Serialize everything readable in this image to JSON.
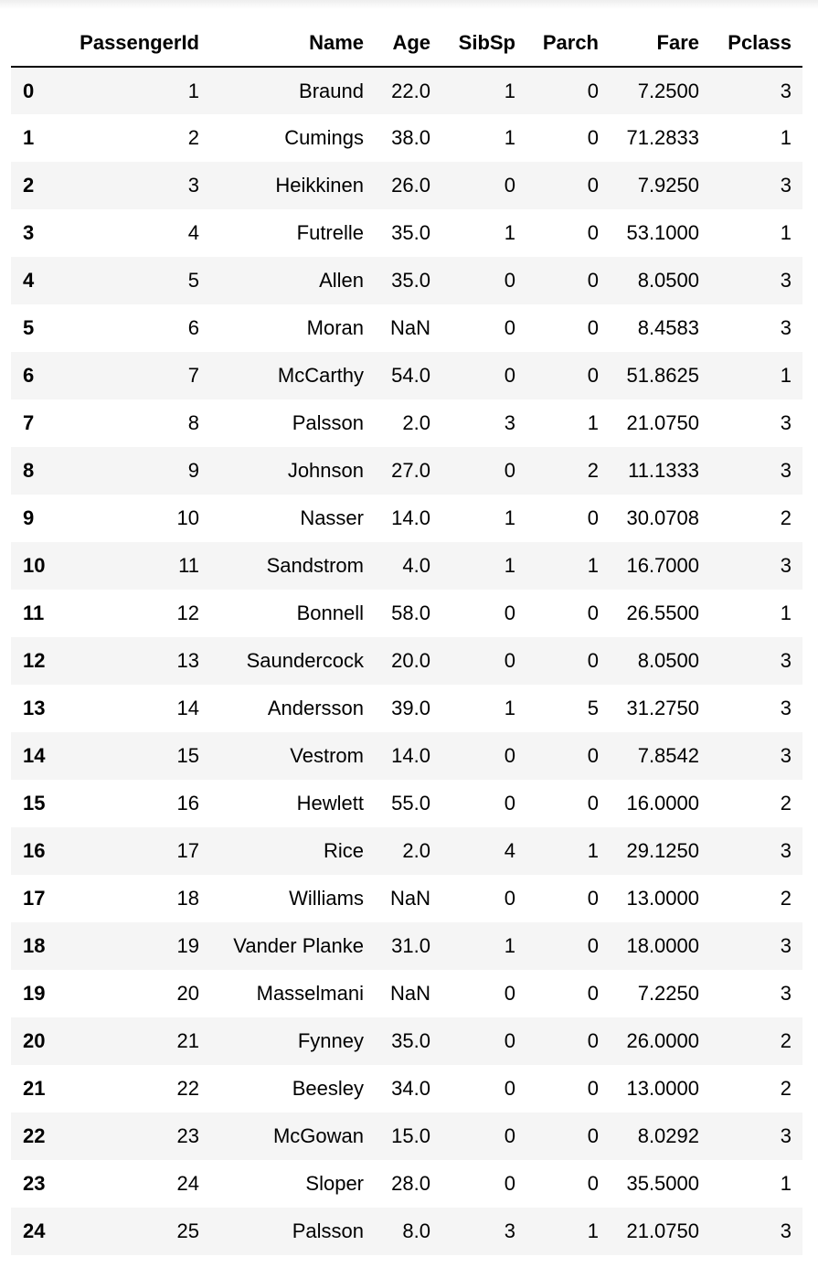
{
  "dataframe": {
    "columns": [
      "PassengerId",
      "Name",
      "Age",
      "SibSp",
      "Parch",
      "Fare",
      "Pclass"
    ],
    "index": [
      "0",
      "1",
      "2",
      "3",
      "4",
      "5",
      "6",
      "7",
      "8",
      "9",
      "10",
      "11",
      "12",
      "13",
      "14",
      "15",
      "16",
      "17",
      "18",
      "19",
      "20",
      "21",
      "22",
      "23",
      "24"
    ],
    "rows": [
      [
        "1",
        "Braund",
        "22.0",
        "1",
        "0",
        "7.2500",
        "3"
      ],
      [
        "2",
        "Cumings",
        "38.0",
        "1",
        "0",
        "71.2833",
        "1"
      ],
      [
        "3",
        "Heikkinen",
        "26.0",
        "0",
        "0",
        "7.9250",
        "3"
      ],
      [
        "4",
        "Futrelle",
        "35.0",
        "1",
        "0",
        "53.1000",
        "1"
      ],
      [
        "5",
        "Allen",
        "35.0",
        "0",
        "0",
        "8.0500",
        "3"
      ],
      [
        "6",
        "Moran",
        "NaN",
        "0",
        "0",
        "8.4583",
        "3"
      ],
      [
        "7",
        "McCarthy",
        "54.0",
        "0",
        "0",
        "51.8625",
        "1"
      ],
      [
        "8",
        "Palsson",
        "2.0",
        "3",
        "1",
        "21.0750",
        "3"
      ],
      [
        "9",
        "Johnson",
        "27.0",
        "0",
        "2",
        "11.1333",
        "3"
      ],
      [
        "10",
        "Nasser",
        "14.0",
        "1",
        "0",
        "30.0708",
        "2"
      ],
      [
        "11",
        "Sandstrom",
        "4.0",
        "1",
        "1",
        "16.7000",
        "3"
      ],
      [
        "12",
        "Bonnell",
        "58.0",
        "0",
        "0",
        "26.5500",
        "1"
      ],
      [
        "13",
        "Saundercock",
        "20.0",
        "0",
        "0",
        "8.0500",
        "3"
      ],
      [
        "14",
        "Andersson",
        "39.0",
        "1",
        "5",
        "31.2750",
        "3"
      ],
      [
        "15",
        "Vestrom",
        "14.0",
        "0",
        "0",
        "7.8542",
        "3"
      ],
      [
        "16",
        "Hewlett",
        "55.0",
        "0",
        "0",
        "16.0000",
        "2"
      ],
      [
        "17",
        "Rice",
        "2.0",
        "4",
        "1",
        "29.1250",
        "3"
      ],
      [
        "18",
        "Williams",
        "NaN",
        "0",
        "0",
        "13.0000",
        "2"
      ],
      [
        "19",
        "Vander Planke",
        "31.0",
        "1",
        "0",
        "18.0000",
        "3"
      ],
      [
        "20",
        "Masselmani",
        "NaN",
        "0",
        "0",
        "7.2250",
        "3"
      ],
      [
        "21",
        "Fynney",
        "35.0",
        "0",
        "0",
        "26.0000",
        "2"
      ],
      [
        "22",
        "Beesley",
        "34.0",
        "0",
        "0",
        "13.0000",
        "2"
      ],
      [
        "23",
        "McGowan",
        "15.0",
        "0",
        "0",
        "8.0292",
        "3"
      ],
      [
        "24",
        "Sloper",
        "28.0",
        "0",
        "0",
        "35.5000",
        "1"
      ],
      [
        "25",
        "Palsson",
        "8.0",
        "3",
        "1",
        "21.0750",
        "3"
      ]
    ]
  }
}
